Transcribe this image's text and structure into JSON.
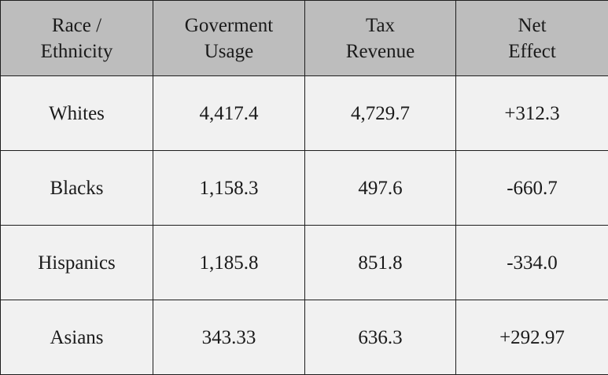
{
  "table": {
    "headers": [
      {
        "line1": "Race /",
        "line2": "Ethnicity"
      },
      {
        "line1": "Goverment",
        "line2": "Usage"
      },
      {
        "line1": "Tax",
        "line2": "Revenue"
      },
      {
        "line1": "Net",
        "line2": "Effect"
      }
    ],
    "rows": [
      {
        "group": "Whites",
        "usage": "4,417.4",
        "revenue": "4,729.7",
        "net": "+312.3"
      },
      {
        "group": "Blacks",
        "usage": "1,158.3",
        "revenue": "497.6",
        "net": "-660.7"
      },
      {
        "group": "Hispanics",
        "usage": "1,185.8",
        "revenue": "851.8",
        "net": "-334.0"
      },
      {
        "group": "Asians",
        "usage": "343.33",
        "revenue": "636.3",
        "net": "+292.97"
      }
    ]
  },
  "colors": {
    "header_bg": "#bdbdbd",
    "cell_bg": "#f1f1f1",
    "border": "#1e1e1e",
    "text": "#1a1a1a"
  }
}
